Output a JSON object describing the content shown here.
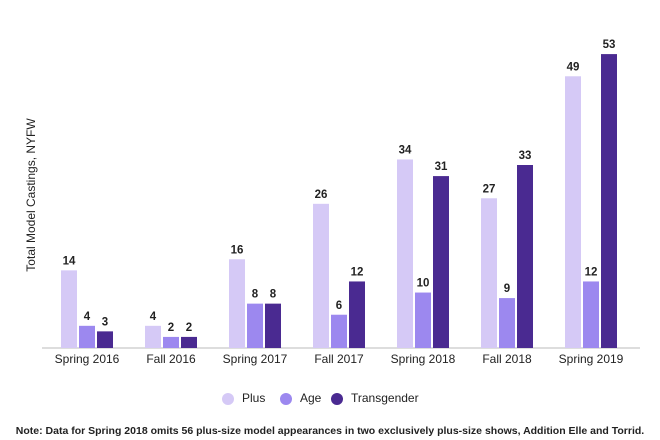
{
  "chart_data": {
    "type": "bar",
    "y_label": "Total Model Castings, NYFW",
    "categories": [
      "Spring 2016",
      "Fall 2016",
      "Spring 2017",
      "Fall 2017",
      "Spring 2018",
      "Fall 2018",
      "Spring 2019"
    ],
    "series": [
      {
        "name": "Plus",
        "color": "#d5c9f6",
        "values": [
          14,
          4,
          16,
          26,
          34,
          27,
          49
        ]
      },
      {
        "name": "Age",
        "color": "#9c88ef",
        "values": [
          4,
          2,
          8,
          6,
          10,
          9,
          12
        ]
      },
      {
        "name": "Transgender",
        "color": "#4a2a91",
        "values": [
          3,
          2,
          8,
          12,
          31,
          33,
          53
        ]
      }
    ],
    "ylim": [
      0,
      55
    ],
    "legend": "bottom",
    "note": "Note: Data for Spring 2018 omits 56 plus-size model appearances in two exclusively plus-size shows, Addition Elle and Torrid."
  }
}
